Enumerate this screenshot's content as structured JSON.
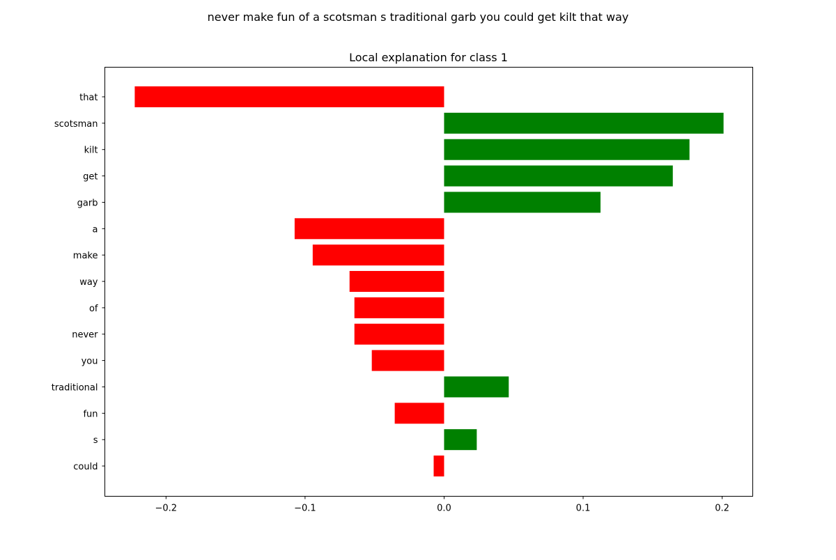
{
  "suptitle": "never make fun of a scotsman s traditional garb you could get kilt that way",
  "chart_data": {
    "type": "bar",
    "orientation": "horizontal",
    "title": "Local explanation for class 1",
    "xlabel": "",
    "ylabel": "",
    "xlim": [
      -0.244,
      0.222
    ],
    "xticks": [
      -0.2,
      -0.1,
      0.0,
      0.1,
      0.2
    ],
    "xtick_labels": [
      "−0.2",
      "−0.1",
      "0.0",
      "0.1",
      "0.2"
    ],
    "grid": false,
    "positive_color": "#008000",
    "negative_color": "#ff0000",
    "categories": [
      "that",
      "scotsman",
      "kilt",
      "get",
      "garb",
      "a",
      "make",
      "way",
      "of",
      "never",
      "you",
      "traditional",
      "fun",
      "s",
      "could"
    ],
    "values": [
      -0.2225,
      0.201,
      0.1765,
      0.1645,
      0.1125,
      -0.1075,
      -0.0945,
      -0.068,
      -0.0645,
      -0.0645,
      -0.052,
      0.0465,
      -0.0355,
      0.0235,
      -0.0075
    ]
  }
}
